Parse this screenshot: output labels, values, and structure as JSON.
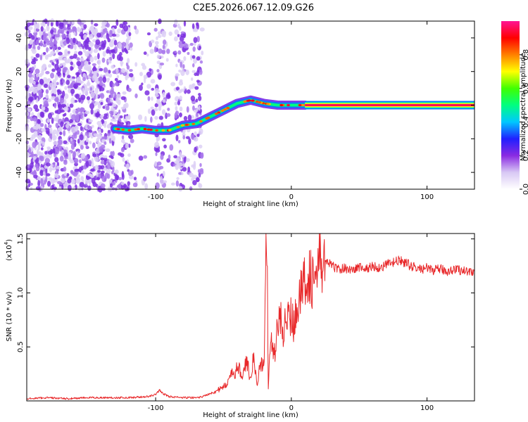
{
  "figure": {
    "title": "C2E5.2026.067.12.09.G26"
  },
  "chart_data": [
    {
      "type": "heatmap",
      "id": "spectrogram",
      "xlabel": "Height of straight line (km)",
      "ylabel": "Frequency (Hz)",
      "xlim": [
        -195,
        135
      ],
      "ylim": [
        -50,
        50
      ],
      "x_ticks": [
        -100,
        0,
        100
      ],
      "x_tick_labels": [
        "-100",
        "0",
        "100"
      ],
      "y_ticks": [
        40,
        20,
        0,
        -20,
        -40
      ],
      "y_tick_labels": [
        "40",
        "20",
        "0",
        "-20",
        "-40"
      ],
      "colorbar": {
        "label": "Normalized spectral amplitude",
        "range": [
          0,
          1
        ],
        "ticks": [
          0.0,
          0.2,
          0.4,
          0.6,
          0.8
        ],
        "tick_labels": [
          "0.0",
          "0.2",
          "0.4",
          "0.6",
          "0.8"
        ],
        "colormap": [
          "#ffffff",
          "#d8c8f4",
          "#8a2be2",
          "#2020ff",
          "#00c8ff",
          "#00ff80",
          "#40ff00",
          "#ffff00",
          "#ff8000",
          "#ff0000",
          "#ff1493"
        ]
      },
      "noise_region_x": [
        -195,
        -65
      ],
      "noise_bands_x": [
        [
          -135,
          -118
        ],
        [
          -100,
          -93
        ],
        [
          -86,
          -78
        ],
        [
          -73,
          -66
        ]
      ],
      "signal_trace": [
        {
          "x": -130,
          "y": -14
        },
        {
          "x": -120,
          "y": -15
        },
        {
          "x": -110,
          "y": -14
        },
        {
          "x": -100,
          "y": -15
        },
        {
          "x": -90,
          "y": -15
        },
        {
          "x": -80,
          "y": -12
        },
        {
          "x": -70,
          "y": -11
        },
        {
          "x": -60,
          "y": -7
        },
        {
          "x": -50,
          "y": -3
        },
        {
          "x": -40,
          "y": 1
        },
        {
          "x": -30,
          "y": 3
        },
        {
          "x": -25,
          "y": 2
        },
        {
          "x": -20,
          "y": 1
        },
        {
          "x": -10,
          "y": 0
        },
        {
          "x": 0,
          "y": 0
        },
        {
          "x": 10,
          "y": 0
        },
        {
          "x": 135,
          "y": 0
        }
      ]
    },
    {
      "type": "line",
      "id": "snr",
      "xlabel": "Height of straight line (km)",
      "ylabel": "SNR (10 * v/v)",
      "scale_label": "(x10",
      "scale_exponent": "4",
      "scale_close": ")",
      "xlim": [
        -195,
        135
      ],
      "ylim": [
        0,
        1.55
      ],
      "x_ticks": [
        -100,
        0,
        100
      ],
      "x_tick_labels": [
        "-100",
        "0",
        "100"
      ],
      "y_ticks": [
        0.5,
        1.0,
        1.5
      ],
      "y_tick_labels": [
        "0.5",
        "1.0",
        "1.5"
      ],
      "line_color": "#e8282a",
      "series": [
        {
          "name": "SNR",
          "x": [
            -195,
            -180,
            -165,
            -150,
            -135,
            -120,
            -105,
            -100,
            -97,
            -95,
            -90,
            -80,
            -70,
            -65,
            -60,
            -50,
            -45,
            -40,
            -35,
            -33,
            -30,
            -28,
            -25,
            -23,
            -20,
            -19,
            -18,
            -17,
            -16,
            -15,
            -14,
            -13,
            -12,
            -10,
            -8,
            -6,
            -4,
            -2,
            0,
            2,
            4,
            6,
            8,
            10,
            13,
            16,
            20,
            24,
            28,
            30,
            35,
            40,
            45,
            50,
            55,
            60,
            65,
            70,
            75,
            80,
            85,
            90,
            95,
            100,
            105,
            110,
            115,
            120,
            125,
            130,
            135
          ],
          "values": [
            0.02,
            0.03,
            0.02,
            0.03,
            0.03,
            0.03,
            0.04,
            0.06,
            0.1,
            0.07,
            0.04,
            0.03,
            0.03,
            0.04,
            0.07,
            0.12,
            0.22,
            0.3,
            0.25,
            0.38,
            0.2,
            0.42,
            0.12,
            0.38,
            0.3,
            1.35,
            1.55,
            0.1,
            0.45,
            0.6,
            0.4,
            0.55,
            0.45,
            0.7,
            0.78,
            0.65,
            0.85,
            0.72,
            0.82,
            0.68,
            0.9,
            1.05,
            0.95,
            1.15,
            1.2,
            1.1,
            1.25,
            1.3,
            1.27,
            1.25,
            1.22,
            1.23,
            1.21,
            1.24,
            1.22,
            1.25,
            1.23,
            1.26,
            1.28,
            1.3,
            1.27,
            1.24,
            1.22,
            1.23,
            1.21,
            1.22,
            1.2,
            1.22,
            1.21,
            1.2,
            1.2
          ]
        }
      ]
    }
  ]
}
